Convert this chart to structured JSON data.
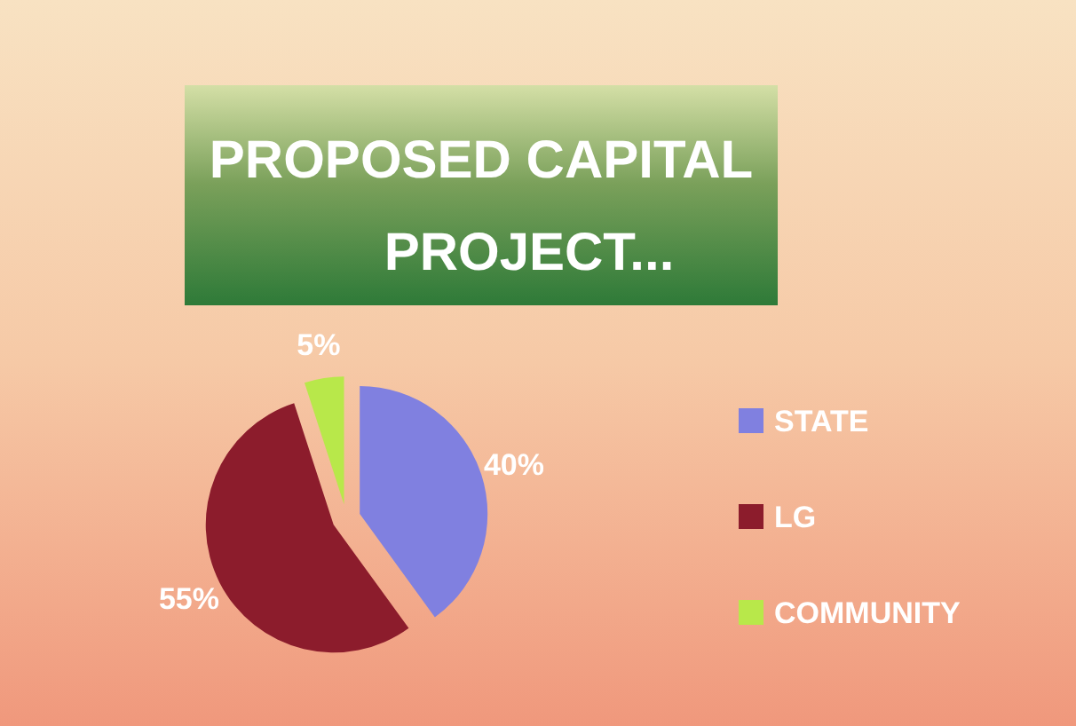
{
  "chart_data": {
    "type": "pie",
    "title": "PROPOSED CAPITAL PROJECT...",
    "categories": [
      "STATE",
      "LG",
      "COMMUNITY"
    ],
    "values": [
      40,
      55,
      5
    ],
    "colors": [
      "#8080e0",
      "#8c1c2c",
      "#b8e84a"
    ],
    "value_labels": [
      "40%",
      "55%",
      "5%"
    ],
    "legend": "right"
  }
}
